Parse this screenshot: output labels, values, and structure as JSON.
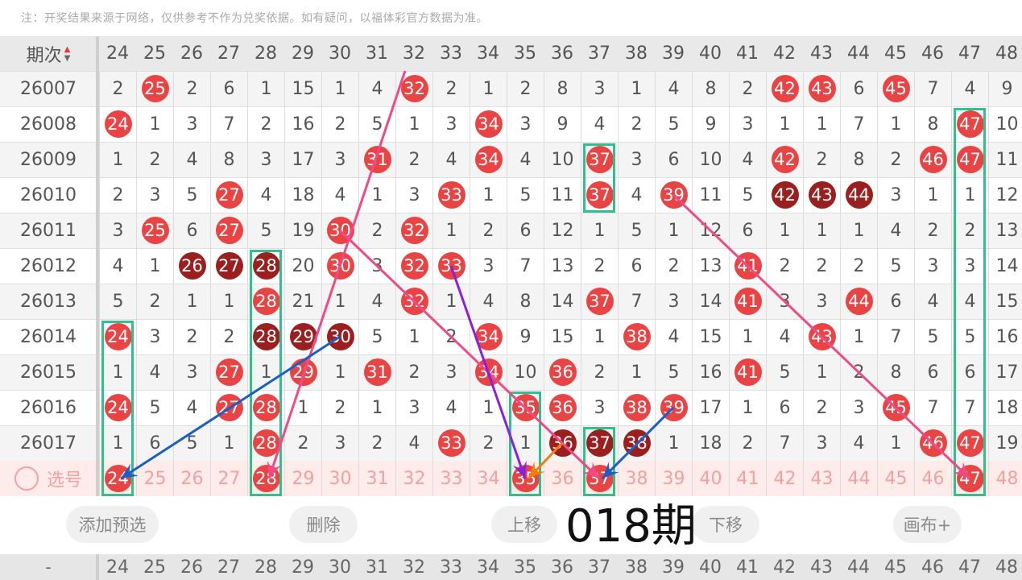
{
  "note": "注：开奖结果来源于网络，仅供参考不作为兑奖依据。如有疑问，以福体彩官方数据为准。",
  "header": {
    "label": "期次",
    "sort_icon": "sort-up-down-icon",
    "columns": [
      "24",
      "25",
      "26",
      "27",
      "28",
      "29",
      "30",
      "31",
      "32",
      "33",
      "34",
      "35",
      "36",
      "37",
      "38",
      "39",
      "40",
      "41",
      "42",
      "43",
      "44",
      "45",
      "46",
      "47",
      "48"
    ]
  },
  "rows": [
    {
      "issue": "26007",
      "values": [
        "2",
        "25",
        "2",
        "6",
        "1",
        "15",
        "1",
        "4",
        "32",
        "2",
        "1",
        "2",
        "8",
        "3",
        "1",
        "4",
        "8",
        "2",
        "42",
        "43",
        "6",
        "45",
        "7",
        "4",
        "9"
      ],
      "dark": []
    },
    {
      "issue": "26008",
      "values": [
        "24",
        "1",
        "3",
        "7",
        "2",
        "16",
        "2",
        "5",
        "1",
        "3",
        "34",
        "3",
        "9",
        "4",
        "2",
        "5",
        "9",
        "3",
        "1",
        "1",
        "7",
        "1",
        "8",
        "47",
        "10"
      ],
      "dark": []
    },
    {
      "issue": "26009",
      "values": [
        "1",
        "2",
        "4",
        "8",
        "3",
        "17",
        "3",
        "31",
        "2",
        "4",
        "34",
        "4",
        "10",
        "37",
        "3",
        "6",
        "10",
        "4",
        "42",
        "2",
        "8",
        "2",
        "46",
        "47",
        "11"
      ],
      "dark": []
    },
    {
      "issue": "26010",
      "values": [
        "2",
        "3",
        "5",
        "27",
        "4",
        "18",
        "4",
        "1",
        "3",
        "33",
        "1",
        "5",
        "11",
        "37",
        "4",
        "39",
        "11",
        "5",
        "42",
        "43",
        "44",
        "3",
        "1",
        "1",
        "12"
      ],
      "dark": [
        "42",
        "43",
        "44"
      ]
    },
    {
      "issue": "26011",
      "values": [
        "3",
        "25",
        "6",
        "27",
        "5",
        "19",
        "30",
        "2",
        "32",
        "1",
        "2",
        "6",
        "12",
        "1",
        "5",
        "1",
        "12",
        "6",
        "1",
        "1",
        "1",
        "4",
        "2",
        "2",
        "13"
      ],
      "dark": []
    },
    {
      "issue": "26012",
      "values": [
        "4",
        "1",
        "26",
        "27",
        "28",
        "20",
        "30",
        "3",
        "32",
        "33",
        "3",
        "7",
        "13",
        "2",
        "6",
        "2",
        "13",
        "41",
        "2",
        "2",
        "2",
        "5",
        "3",
        "3",
        "14"
      ],
      "dark": [
        "26",
        "27",
        "28"
      ]
    },
    {
      "issue": "26013",
      "values": [
        "5",
        "2",
        "1",
        "1",
        "28",
        "21",
        "1",
        "4",
        "32",
        "1",
        "4",
        "8",
        "14",
        "37",
        "7",
        "3",
        "14",
        "41",
        "3",
        "3",
        "44",
        "6",
        "4",
        "4",
        "15"
      ],
      "dark": []
    },
    {
      "issue": "26014",
      "values": [
        "24",
        "3",
        "2",
        "2",
        "28",
        "29",
        "30",
        "5",
        "1",
        "2",
        "34",
        "9",
        "15",
        "1",
        "38",
        "4",
        "15",
        "1",
        "4",
        "43",
        "1",
        "7",
        "5",
        "5",
        "16"
      ],
      "dark": [
        "28",
        "29",
        "30"
      ]
    },
    {
      "issue": "26015",
      "values": [
        "1",
        "4",
        "3",
        "27",
        "1",
        "29",
        "1",
        "31",
        "2",
        "3",
        "34",
        "10",
        "36",
        "2",
        "1",
        "5",
        "16",
        "41",
        "5",
        "1",
        "2",
        "8",
        "6",
        "6",
        "17"
      ],
      "dark": []
    },
    {
      "issue": "26016",
      "values": [
        "24",
        "5",
        "4",
        "27",
        "28",
        "1",
        "2",
        "1",
        "3",
        "4",
        "1",
        "35",
        "36",
        "3",
        "38",
        "39",
        "17",
        "1",
        "6",
        "2",
        "3",
        "45",
        "7",
        "7",
        "18"
      ],
      "dark": []
    },
    {
      "issue": "26017",
      "values": [
        "1",
        "6",
        "5",
        "1",
        "28",
        "2",
        "3",
        "2",
        "4",
        "33",
        "2",
        "1",
        "36",
        "37",
        "38",
        "1",
        "18",
        "2",
        "7",
        "3",
        "4",
        "1",
        "46",
        "47",
        "19"
      ],
      "dark": [
        "36",
        "37",
        "38"
      ]
    }
  ],
  "select_row": {
    "label": "选号",
    "values": [
      "24",
      "25",
      "26",
      "27",
      "28",
      "29",
      "30",
      "31",
      "32",
      "33",
      "34",
      "35",
      "36",
      "37",
      "38",
      "39",
      "40",
      "41",
      "42",
      "43",
      "44",
      "45",
      "46",
      "47",
      "48"
    ],
    "selected": [
      "24",
      "28",
      "35",
      "37",
      "47"
    ]
  },
  "buttons": {
    "add_preselect": "添加预选",
    "delete": "删除",
    "move_up": "上移",
    "move_down": "下移",
    "canvas_plus": "画布+"
  },
  "overlay_text": "018期",
  "footer": {
    "label": "-",
    "values": [
      "24",
      "25",
      "26",
      "27",
      "28",
      "29",
      "30",
      "31",
      "32",
      "33",
      "34",
      "35",
      "36",
      "37",
      "38",
      "39",
      "40",
      "41",
      "42",
      "43",
      "44",
      "45",
      "46",
      "47",
      "48"
    ]
  },
  "colors": {
    "ball": "#e94343",
    "ball_dark": "#9c1f1f",
    "highlight_box": "#2fc08e",
    "line_pink": "#ef4a86",
    "line_purple": "#8a1fe0",
    "line_blue": "#1a5fc4",
    "line_orange": "#f57c0e"
  }
}
